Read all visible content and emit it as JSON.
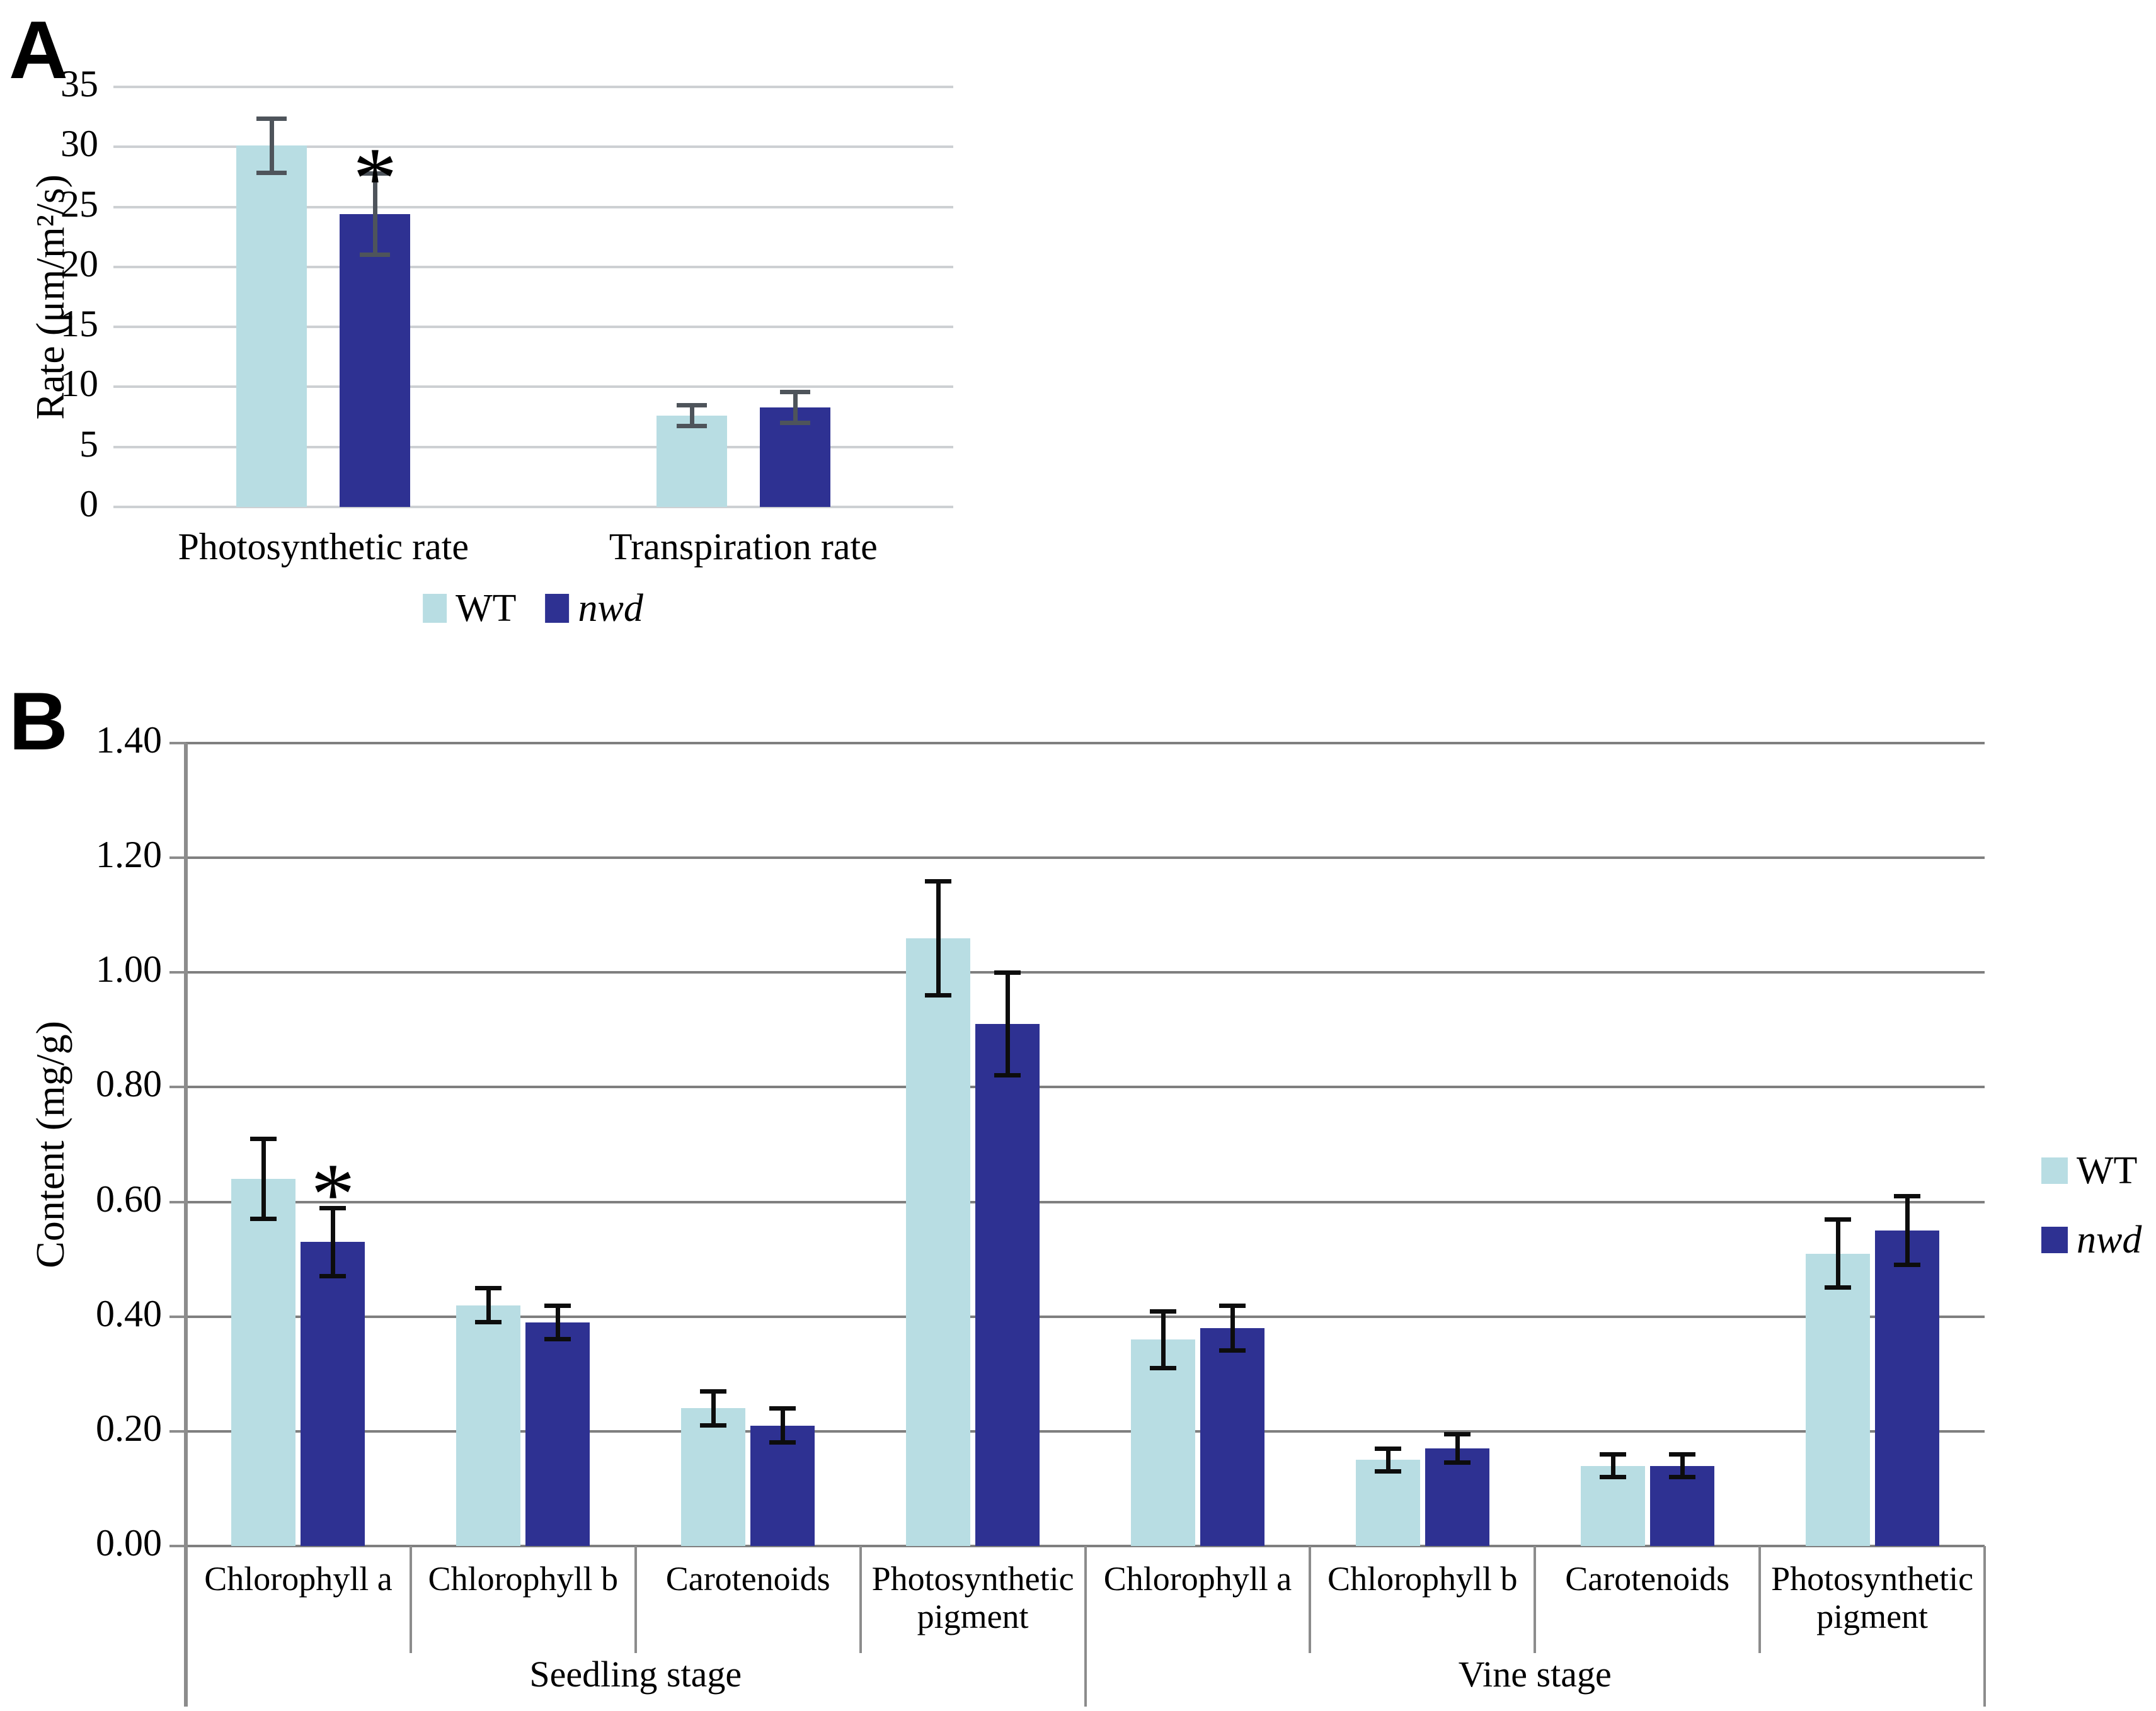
{
  "figure": {
    "panel_a_label": "A",
    "panel_b_label": "B"
  },
  "colors": {
    "wt": "#b8dde3",
    "nwd": "#2e3192",
    "panel_a_grid": "#cdd0d3",
    "panel_b_grid": "#7f7f7f",
    "panel_b_axis": "#8c8c8c",
    "panel_a_error": "#4e545b",
    "panel_b_error": "#0d0d0d",
    "text": "#000000"
  },
  "chart_data": [
    {
      "id": "panel-a",
      "type": "bar",
      "title": "",
      "xlabel": "",
      "ylabel": "Rate (μm/m²/s)",
      "ylim": [
        0,
        35
      ],
      "ytick_step": 5,
      "ytick_decimals": 0,
      "grid": "horizontal",
      "legend_position": "bottom-center",
      "categories": [
        "Photosynthetic rate",
        "Transpiration rate"
      ],
      "series": [
        {
          "name": "WT",
          "color_key": "wt",
          "italic": false,
          "values": [
            30.1,
            7.6
          ],
          "errors": [
            2.3,
            0.9
          ]
        },
        {
          "name": "nwd",
          "color_key": "nwd",
          "italic": true,
          "values": [
            24.4,
            8.3
          ],
          "errors": [
            3.4,
            1.3
          ]
        }
      ],
      "significance": [
        {
          "series_index": 1,
          "category_index": 0,
          "marker": "*"
        }
      ]
    },
    {
      "id": "panel-b",
      "type": "bar",
      "title": "",
      "xlabel": "",
      "ylabel": "Content (mg/g)",
      "ylim": [
        0,
        1.4
      ],
      "ytick_step": 0.2,
      "ytick_decimals": 2,
      "grid": "horizontal",
      "legend_position": "right",
      "categories": [
        "Chlorophyll a",
        "Chlorophyll b",
        "Carotenoids",
        "Photosynthetic pigment",
        "Chlorophyll a",
        "Chlorophyll b",
        "Carotenoids",
        "Photosynthetic pigment"
      ],
      "stages": [
        {
          "label": "Seedling stage",
          "start": 0,
          "end": 3
        },
        {
          "label": "Vine stage",
          "start": 4,
          "end": 7
        }
      ],
      "series": [
        {
          "name": "WT",
          "color_key": "wt",
          "italic": false,
          "values": [
            0.64,
            0.42,
            0.24,
            1.06,
            0.36,
            0.15,
            0.14,
            0.51
          ],
          "errors": [
            0.07,
            0.03,
            0.03,
            0.1,
            0.05,
            0.02,
            0.02,
            0.06
          ]
        },
        {
          "name": "nwd",
          "color_key": "nwd",
          "italic": true,
          "values": [
            0.53,
            0.39,
            0.21,
            0.91,
            0.38,
            0.17,
            0.14,
            0.55
          ],
          "errors": [
            0.06,
            0.03,
            0.03,
            0.09,
            0.04,
            0.025,
            0.02,
            0.06
          ]
        }
      ],
      "significance": [
        {
          "series_index": 1,
          "category_index": 0,
          "marker": "*"
        }
      ]
    }
  ]
}
